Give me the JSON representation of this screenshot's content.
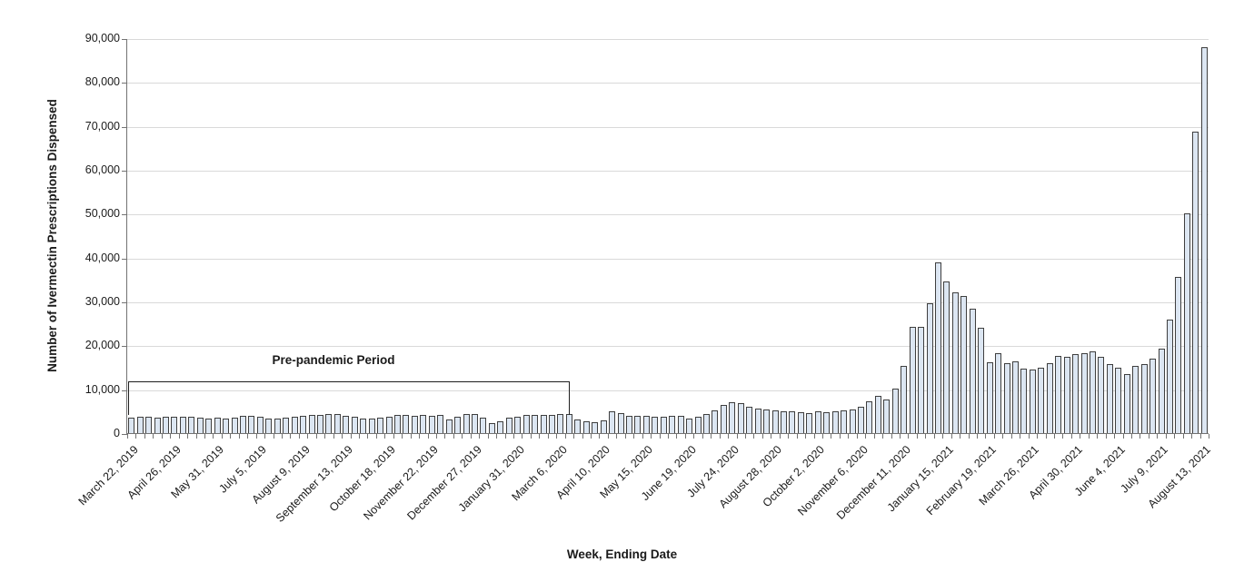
{
  "figure": {
    "y_axis": {
      "title": "Number of Ivermectin Prescriptions Dispensed",
      "tick_labels": [
        "0",
        "10,000",
        "20,000",
        "30,000",
        "40,000",
        "50,000",
        "60,000",
        "70,000",
        "80,000",
        "90,000"
      ]
    },
    "x_axis": {
      "title": "Week, Ending Date",
      "visible_tick_labels": [
        "March 22, 2019",
        "April 26, 2019",
        "May 31, 2019",
        "July 5, 2019",
        "August 9, 2019",
        "September 13, 2019",
        "October 18, 2019",
        "November 22, 2019",
        "December 27, 2019",
        "January 31, 2020",
        "March 6, 2020",
        "April 10, 2020",
        "May 15, 2020",
        "June 19, 2020",
        "July 24, 2020",
        "August 28, 2020",
        "October 2, 2020",
        "November 6, 2020",
        "December 11, 2020",
        "January 15, 2021",
        "February 19, 2021",
        "March 26, 2021",
        "April 30, 2021",
        "June 4, 2021",
        "July 9, 2021",
        "August 13, 2021"
      ]
    },
    "annotation": {
      "label": "Pre-pandemic Period",
      "covers_weeks": "March 22, 2019 through March 13, 2020"
    },
    "colors": {
      "bar_fill": "#dce6f2",
      "bar_border": "#3f3f3f",
      "gridline": "#d9d9d9",
      "axis": "#737373",
      "text": "#1a1a1a",
      "annotation_line": "#1f1f1f"
    }
  },
  "chart_data": {
    "type": "bar",
    "title": "",
    "xlabel": "Week, Ending Date",
    "ylabel": "Number of Ivermectin Prescriptions Dispensed",
    "ylim": [
      0,
      90000
    ],
    "y_step": 10000,
    "grid": true,
    "legend": "none",
    "x_tick_every": 5,
    "x": [
      "March 22, 2019",
      "March 29, 2019",
      "April 5, 2019",
      "April 12, 2019",
      "April 19, 2019",
      "April 26, 2019",
      "May 3, 2019",
      "May 10, 2019",
      "May 17, 2019",
      "May 24, 2019",
      "May 31, 2019",
      "June 7, 2019",
      "June 14, 2019",
      "June 21, 2019",
      "June 28, 2019",
      "July 5, 2019",
      "July 12, 2019",
      "July 19, 2019",
      "July 26, 2019",
      "August 2, 2019",
      "August 9, 2019",
      "August 16, 2019",
      "August 23, 2019",
      "August 30, 2019",
      "September 6, 2019",
      "September 13, 2019",
      "September 20, 2019",
      "September 27, 2019",
      "October 4, 2019",
      "October 11, 2019",
      "October 18, 2019",
      "October 25, 2019",
      "November 1, 2019",
      "November 8, 2019",
      "November 15, 2019",
      "November 22, 2019",
      "November 29, 2019",
      "December 6, 2019",
      "December 13, 2019",
      "December 20, 2019",
      "December 27, 2019",
      "January 3, 2020",
      "January 10, 2020",
      "January 17, 2020",
      "January 24, 2020",
      "January 31, 2020",
      "February 7, 2020",
      "February 14, 2020",
      "February 21, 2020",
      "February 28, 2020",
      "March 6, 2020",
      "March 13, 2020",
      "March 20, 2020",
      "March 27, 2020",
      "April 3, 2020",
      "April 10, 2020",
      "April 17, 2020",
      "April 24, 2020",
      "May 1, 2020",
      "May 8, 2020",
      "May 15, 2020",
      "May 22, 2020",
      "May 29, 2020",
      "June 5, 2020",
      "June 12, 2020",
      "June 19, 2020",
      "June 26, 2020",
      "July 3, 2020",
      "July 10, 2020",
      "July 17, 2020",
      "July 24, 2020",
      "July 31, 2020",
      "August 7, 2020",
      "August 14, 2020",
      "August 21, 2020",
      "August 28, 2020",
      "September 4, 2020",
      "September 11, 2020",
      "September 18, 2020",
      "September 25, 2020",
      "October 2, 2020",
      "October 9, 2020",
      "October 16, 2020",
      "October 23, 2020",
      "October 30, 2020",
      "November 6, 2020",
      "November 13, 2020",
      "November 20, 2020",
      "November 27, 2020",
      "December 4, 2020",
      "December 11, 2020",
      "December 18, 2020",
      "December 25, 2020",
      "January 1, 2021",
      "January 8, 2021",
      "January 15, 2021",
      "January 22, 2021",
      "January 29, 2021",
      "February 5, 2021",
      "February 12, 2021",
      "February 19, 2021",
      "February 26, 2021",
      "March 5, 2021",
      "March 12, 2021",
      "March 19, 2021",
      "March 26, 2021",
      "April 2, 2021",
      "April 9, 2021",
      "April 16, 2021",
      "April 23, 2021",
      "April 30, 2021",
      "May 7, 2021",
      "May 14, 2021",
      "May 21, 2021",
      "May 28, 2021",
      "June 4, 2021",
      "June 11, 2021",
      "June 18, 2021",
      "June 25, 2021",
      "July 2, 2021",
      "July 9, 2021",
      "July 16, 2021",
      "July 23, 2021",
      "July 30, 2021",
      "August 6, 2021",
      "August 13, 2021"
    ],
    "values": [
      3600,
      3700,
      3650,
      3600,
      3750,
      3700,
      3800,
      3650,
      3500,
      3400,
      3450,
      3300,
      3550,
      3900,
      4000,
      3700,
      3300,
      3250,
      3600,
      3800,
      3900,
      4200,
      4100,
      4300,
      4250,
      4000,
      3800,
      3400,
      3300,
      3500,
      3800,
      4200,
      4100,
      3900,
      4100,
      3900,
      4100,
      3200,
      3700,
      4300,
      4400,
      3600,
      2300,
      2700,
      3600,
      3700,
      4100,
      4200,
      4200,
      4200,
      4400,
      4300,
      3200,
      2700,
      2500,
      2900,
      5000,
      4600,
      3900,
      3900,
      3900,
      3700,
      3700,
      3900,
      4000,
      3400,
      3800,
      4300,
      5200,
      6500,
      7000,
      6900,
      6000,
      5500,
      5300,
      5200,
      5000,
      4900,
      4700,
      4600,
      5000,
      4700,
      4900,
      5100,
      5400,
      6100,
      7300,
      8400,
      7600,
      10100,
      15300,
      24300,
      24300,
      29500,
      39000,
      34600,
      32100,
      31300,
      28400,
      23900,
      16200,
      18300,
      16000,
      16300,
      14600,
      14400,
      15000,
      15900,
      17500,
      17400,
      18100,
      18300,
      18600,
      17300,
      15700,
      14800,
      13400,
      15300,
      15800,
      17000,
      19300,
      25800,
      35500,
      50000,
      68700,
      88000
    ]
  }
}
